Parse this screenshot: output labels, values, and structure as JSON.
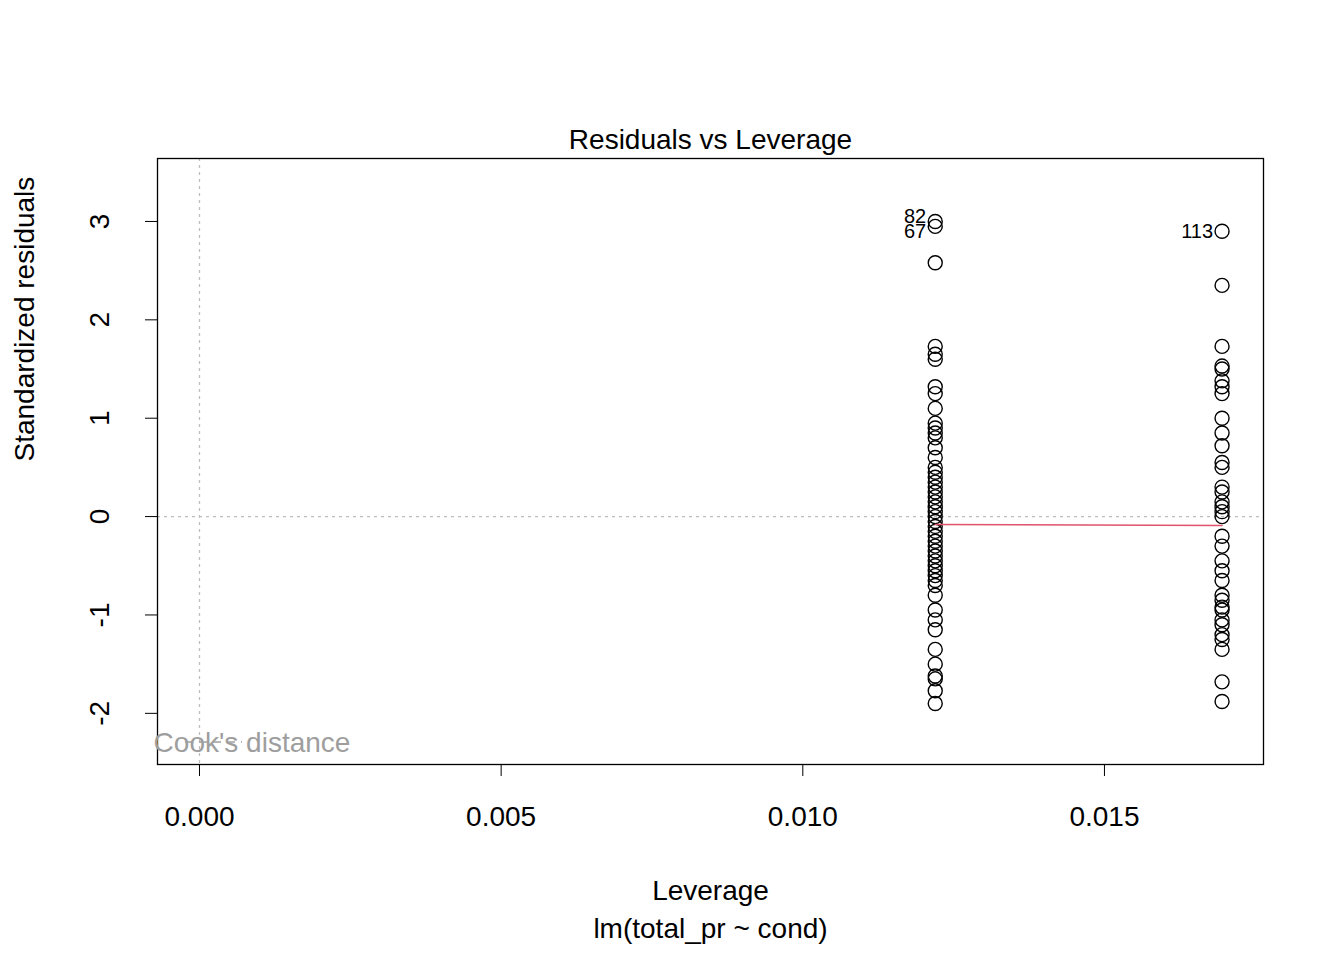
{
  "chart_data": {
    "type": "scatter",
    "title": "Residuals vs Leverage",
    "x_label": "Leverage",
    "subtitle": "lm(total_pr ~ cond)",
    "y_label": "Standardized residuals",
    "xlim": [
      -0.000696,
      0.017636
    ],
    "ylim": [
      -2.52,
      3.64
    ],
    "xticks": [
      {
        "value": 0,
        "label": "0.000"
      },
      0.005,
      {
        "value": 0.01,
        "label": "0.010"
      },
      0.015
    ],
    "yticks": [
      -2,
      -1,
      0,
      1,
      2,
      3
    ],
    "hlines": [
      0
    ],
    "vlines": [
      0
    ],
    "legend": "bottomleft",
    "series": [
      {
        "type": "scatter",
        "marker": "open circle",
        "color": "#000000",
        "x": [
          0.012195,
          0.012195,
          0.012195,
          0.012195,
          0.012195,
          0.012195,
          0.012195,
          0.012195,
          0.012195,
          0.012195,
          0.012195,
          0.012195,
          0.012195,
          0.012195,
          0.012195,
          0.012195,
          0.012195,
          0.012195,
          0.012195,
          0.012195,
          0.012195,
          0.012195,
          0.012195,
          0.012195,
          0.012195,
          0.012195,
          0.012195,
          0.012195,
          0.012195,
          0.012195,
          0.012195,
          0.012195,
          0.012195,
          0.012195,
          0.012195,
          0.012195,
          0.012195,
          0.012195,
          0.012195,
          0.012195,
          0.012195,
          0.012195,
          0.012195,
          0.012195,
          0.012195,
          0.012195,
          0.012195,
          0.012195,
          0.012195,
          0.012195
        ],
        "values": [
          3.0,
          2.95,
          2.58,
          1.73,
          1.65,
          1.6,
          1.32,
          1.25,
          1.1,
          0.95,
          0.9,
          0.85,
          0.8,
          0.7,
          0.6,
          0.5,
          0.45,
          0.4,
          0.35,
          0.3,
          0.25,
          0.2,
          0.15,
          0.1,
          0.05,
          0.0,
          -0.05,
          -0.1,
          -0.15,
          -0.2,
          -0.25,
          -0.3,
          -0.35,
          -0.4,
          -0.45,
          -0.5,
          -0.55,
          -0.6,
          -0.65,
          -0.7,
          -0.8,
          -0.95,
          -1.05,
          -1.15,
          -1.35,
          -1.5,
          -1.62,
          -1.65,
          -1.77,
          -1.9
        ]
      },
      {
        "type": "scatter",
        "marker": "open circle",
        "color": "#000000",
        "x": [
          0.016949,
          0.016949,
          0.016949,
          0.016949,
          0.016949,
          0.016949,
          0.016949,
          0.016949,
          0.016949,
          0.016949,
          0.016949,
          0.016949,
          0.016949,
          0.016949,
          0.016949,
          0.016949,
          0.016949,
          0.016949,
          0.016949,
          0.016949,
          0.016949,
          0.016949,
          0.016949,
          0.016949,
          0.016949,
          0.016949,
          0.016949,
          0.016949,
          0.016949,
          0.016949,
          0.016949,
          0.016949,
          0.016949,
          0.016949,
          0.016949
        ],
        "values": [
          2.9,
          2.35,
          1.73,
          1.53,
          1.5,
          1.38,
          1.32,
          1.25,
          1.0,
          0.85,
          0.72,
          0.55,
          0.5,
          0.3,
          0.25,
          0.15,
          0.1,
          0.05,
          0.0,
          -0.2,
          -0.3,
          -0.45,
          -0.55,
          -0.65,
          -0.8,
          -0.85,
          -0.92,
          -0.95,
          -1.05,
          -1.1,
          -1.2,
          -1.25,
          -1.35,
          -1.68,
          -1.88
        ]
      },
      {
        "type": "line",
        "line_style": "solid",
        "color": "#DF536B",
        "x": [
          0.012195,
          0.016949
        ],
        "values": [
          -0.08,
          -0.09
        ]
      },
      {
        "name": "Cook's distance",
        "type": "line",
        "line_style": "dashed",
        "color": "#9E9E9E",
        "x": [],
        "values": []
      }
    ],
    "annotations": [
      {
        "x": 0.012195,
        "y": 3.0,
        "text": "82"
      },
      {
        "x": 0.012195,
        "y": 2.95,
        "text": "67"
      },
      {
        "x": 0.016949,
        "y": 2.9,
        "text": "113"
      }
    ]
  }
}
